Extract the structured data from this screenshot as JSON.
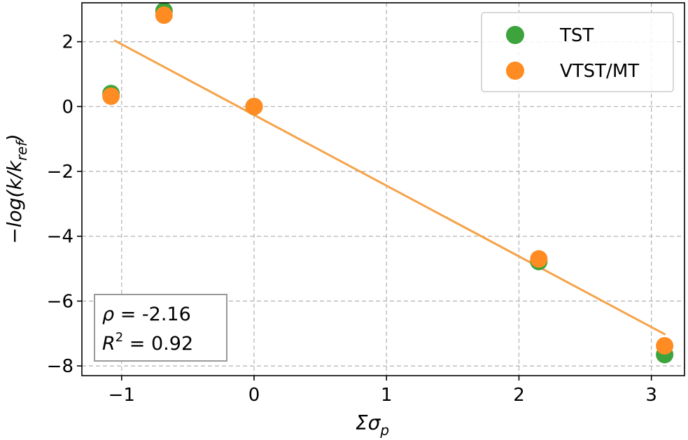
{
  "chart_data": {
    "type": "scatter",
    "xlabel": "Σσ",
    "xlabel_sub": "p",
    "ylabel": "−log(k/k",
    "ylabel_sub": "ref",
    "ylabel_close": ")",
    "xlim": [
      -1.3,
      3.25
    ],
    "ylim": [
      -8.3,
      3.2
    ],
    "x_ticks": [
      -1,
      0,
      1,
      2,
      3
    ],
    "x_tick_labels": [
      "−1",
      "0",
      "1",
      "2",
      "3"
    ],
    "y_ticks": [
      2,
      0,
      -2,
      -4,
      -6,
      -8
    ],
    "y_tick_labels": [
      "2",
      "0",
      "−2",
      "−4",
      "−6",
      "−8"
    ],
    "grid": true,
    "legend_position": "top-right",
    "series": [
      {
        "name": "TST",
        "color": "#3da33d",
        "points": [
          {
            "x": -1.08,
            "y": 0.4
          },
          {
            "x": -0.68,
            "y": 2.95
          },
          {
            "x": 0.0,
            "y": 0.0
          },
          {
            "x": 2.15,
            "y": -4.78
          },
          {
            "x": 3.1,
            "y": -7.65
          }
        ]
      },
      {
        "name": "VTST/MT",
        "color": "#ff8c22",
        "points": [
          {
            "x": -1.08,
            "y": 0.32
          },
          {
            "x": -0.68,
            "y": 2.82
          },
          {
            "x": 0.0,
            "y": 0.0
          },
          {
            "x": 2.15,
            "y": -4.7
          },
          {
            "x": 3.1,
            "y": -7.38
          }
        ]
      }
    ],
    "fit_line": {
      "color": "#f5a34a",
      "x": [
        -1.05,
        3.1
      ],
      "y": [
        2.03,
        -7.02
      ]
    },
    "annotation": {
      "line1_symbol": "ρ",
      "line1_value": " = -2.16",
      "line2_symbol": "R",
      "line2_sup": "2",
      "line2_value": " = 0.92"
    }
  }
}
